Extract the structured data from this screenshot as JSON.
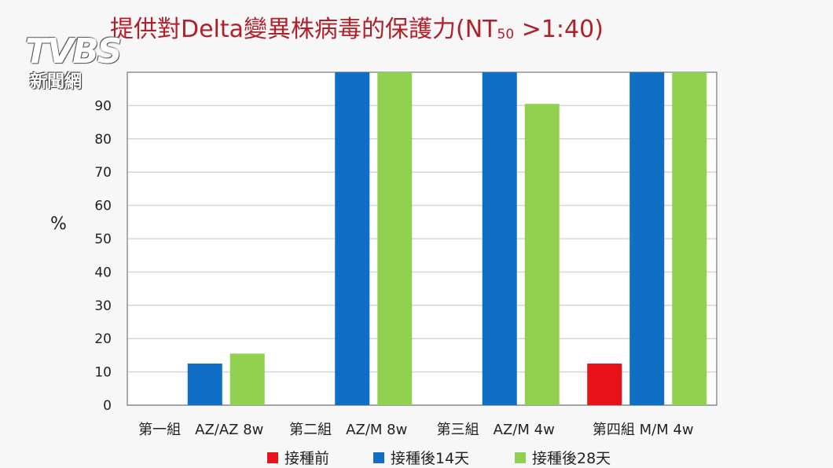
{
  "logo": {
    "brand": "TVBS",
    "subtitle": "新聞網"
  },
  "title_main": "提供對Delta變異株病毒的保護力(NT",
  "title_sub": "50",
  "title_tail": " >1:40)",
  "chart_data": {
    "type": "bar",
    "title": "提供對Delta變異株病毒的保護力(NT50 >1:40)",
    "ylabel": "%",
    "xlabel": "",
    "ylim": [
      0,
      100
    ],
    "yticks": [
      0,
      10,
      20,
      30,
      40,
      50,
      60,
      70,
      80,
      90
    ],
    "grid": true,
    "legend_position": "bottom",
    "categories": [
      "第一組　AZ/AZ 8w",
      "第二組　AZ/M 8w",
      "第三組　AZ/M 4w",
      "第四組 M/M 4w"
    ],
    "series": [
      {
        "name": "接種前",
        "color": "#e8121a",
        "values": [
          0,
          0,
          0,
          12.5
        ]
      },
      {
        "name": "接種後14天",
        "color": "#0f6fc6",
        "values": [
          12.5,
          100,
          100,
          100
        ]
      },
      {
        "name": "接種後28天",
        "color": "#92d050",
        "values": [
          15.5,
          100,
          90.5,
          100
        ]
      }
    ]
  }
}
